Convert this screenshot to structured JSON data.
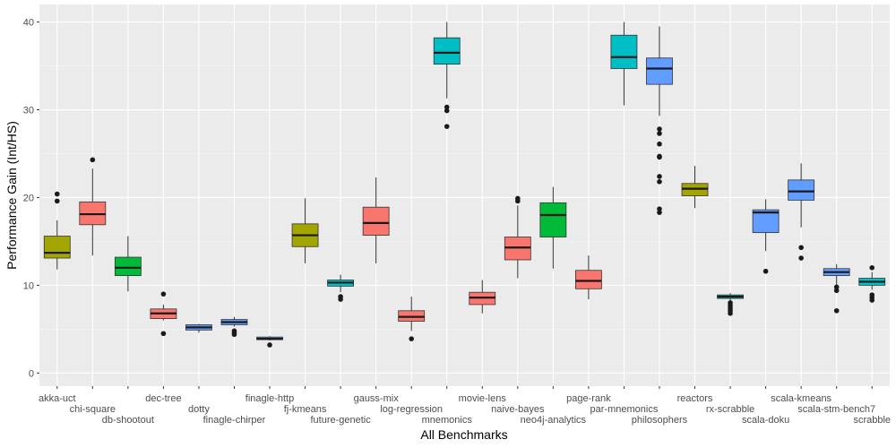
{
  "chart_data": {
    "type": "boxplot",
    "title": "",
    "xlabel": "All Benchmarks",
    "ylabel": "Performance Gain (Int/HS)",
    "ylim": [
      -1.5,
      42
    ],
    "yticks": [
      0,
      10,
      20,
      30,
      40
    ],
    "grid": true,
    "legend": "none",
    "palette": {
      "red": "#F8766D",
      "olive": "#A3A500",
      "green": "#00BA38",
      "teal": "#00BFC4",
      "blue": "#619CFF"
    },
    "categories": [
      {
        "name": "akka-uct",
        "color": "olive",
        "min": 11.8,
        "q1": 13.1,
        "median": 13.7,
        "q3": 15.6,
        "max": 17.4,
        "outliers": [
          19.6,
          20.4
        ]
      },
      {
        "name": "chi-square",
        "color": "red",
        "min": 13.4,
        "q1": 16.9,
        "median": 18.1,
        "q3": 19.5,
        "max": 23.3,
        "outliers": [
          24.3
        ]
      },
      {
        "name": "db-shootout",
        "color": "green",
        "min": 9.3,
        "q1": 11.1,
        "median": 12.0,
        "q3": 13.2,
        "max": 15.6,
        "outliers": []
      },
      {
        "name": "dec-tree",
        "color": "red",
        "min": 6.0,
        "q1": 6.2,
        "median": 6.8,
        "q3": 7.3,
        "max": 7.8,
        "outliers": [
          4.5,
          9.0
        ]
      },
      {
        "name": "dotty",
        "color": "blue",
        "min": 4.6,
        "q1": 4.9,
        "median": 5.2,
        "q3": 5.5,
        "max": 5.6,
        "outliers": []
      },
      {
        "name": "finagle-chirper",
        "color": "blue",
        "min": 5.3,
        "q1": 5.5,
        "median": 5.8,
        "q3": 6.1,
        "max": 6.4,
        "outliers": [
          4.4,
          4.6,
          4.8
        ]
      },
      {
        "name": "finagle-http",
        "color": "blue",
        "min": 3.7,
        "q1": 3.8,
        "median": 3.9,
        "q3": 4.1,
        "max": 4.2,
        "outliers": [
          3.2
        ]
      },
      {
        "name": "fj-kmeans",
        "color": "olive",
        "min": 12.5,
        "q1": 14.4,
        "median": 15.7,
        "q3": 17.0,
        "max": 19.9,
        "outliers": []
      },
      {
        "name": "future-genetic",
        "color": "teal",
        "min": 9.2,
        "q1": 9.9,
        "median": 10.3,
        "q3": 10.6,
        "max": 11.2,
        "outliers": [
          8.4,
          8.7
        ]
      },
      {
        "name": "gauss-mix",
        "color": "red",
        "min": 12.5,
        "q1": 15.7,
        "median": 17.1,
        "q3": 18.9,
        "max": 22.3,
        "outliers": []
      },
      {
        "name": "log-regression",
        "color": "red",
        "min": 4.8,
        "q1": 5.9,
        "median": 6.4,
        "q3": 7.1,
        "max": 8.7,
        "outliers": [
          3.9
        ]
      },
      {
        "name": "mnemonics",
        "color": "teal",
        "min": 31.3,
        "q1": 35.2,
        "median": 36.5,
        "q3": 38.2,
        "max": 40.0,
        "outliers": [
          28.1,
          29.9,
          30.3
        ]
      },
      {
        "name": "movie-lens",
        "color": "red",
        "min": 6.8,
        "q1": 7.8,
        "median": 8.6,
        "q3": 9.2,
        "max": 10.6,
        "outliers": []
      },
      {
        "name": "naive-bayes",
        "color": "red",
        "min": 10.8,
        "q1": 12.9,
        "median": 14.3,
        "q3": 15.5,
        "max": 19.1,
        "outliers": [
          19.6,
          19.9
        ]
      },
      {
        "name": "neo4j-analytics",
        "color": "green",
        "min": 11.9,
        "q1": 15.5,
        "median": 18.0,
        "q3": 19.4,
        "max": 21.2,
        "outliers": []
      },
      {
        "name": "page-rank",
        "color": "red",
        "min": 8.4,
        "q1": 9.6,
        "median": 10.5,
        "q3": 11.7,
        "max": 13.4,
        "outliers": []
      },
      {
        "name": "par-mnemonics",
        "color": "teal",
        "min": 30.5,
        "q1": 34.7,
        "median": 36.0,
        "q3": 38.5,
        "max": 40.0,
        "outliers": []
      },
      {
        "name": "philosophers",
        "color": "blue",
        "min": 29.3,
        "q1": 32.9,
        "median": 34.7,
        "q3": 35.9,
        "max": 39.5,
        "outliers": [
          18.3,
          18.7,
          21.8,
          22.4,
          24.6,
          24.7,
          26.1,
          27.3,
          27.8
        ]
      },
      {
        "name": "reactors",
        "color": "olive",
        "min": 18.8,
        "q1": 20.2,
        "median": 21.0,
        "q3": 21.6,
        "max": 23.6,
        "outliers": []
      },
      {
        "name": "rx-scrabble",
        "color": "teal",
        "min": 8.2,
        "q1": 8.5,
        "median": 8.7,
        "q3": 8.9,
        "max": 9.1,
        "outliers": [
          6.8,
          7.1,
          7.4,
          7.7,
          8.0
        ]
      },
      {
        "name": "scala-doku",
        "color": "blue",
        "min": 13.9,
        "q1": 16.0,
        "median": 18.3,
        "q3": 18.6,
        "max": 19.8,
        "outliers": [
          11.6
        ]
      },
      {
        "name": "scala-kmeans",
        "color": "blue",
        "min": 16.6,
        "q1": 19.7,
        "median": 20.7,
        "q3": 22.0,
        "max": 23.9,
        "outliers": [
          13.1,
          14.3
        ]
      },
      {
        "name": "scala-stm-bench7",
        "color": "blue",
        "min": 10.1,
        "q1": 11.1,
        "median": 11.5,
        "q3": 11.9,
        "max": 12.4,
        "outliers": [
          7.1,
          9.4,
          9.8
        ]
      },
      {
        "name": "scrabble",
        "color": "teal",
        "min": 9.5,
        "q1": 10.0,
        "median": 10.4,
        "q3": 10.8,
        "max": 11.5,
        "outliers": [
          8.3,
          8.6,
          8.9,
          12.0
        ]
      }
    ]
  }
}
